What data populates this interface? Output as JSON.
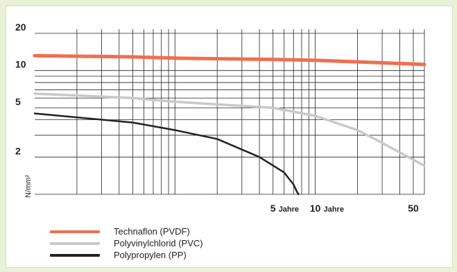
{
  "chart_data": {
    "type": "line",
    "title": "",
    "xlabel": "",
    "ylabel": "N/mm²",
    "x_scale": "log",
    "y_scale": "log",
    "xlim": [
      0.1,
      60
    ],
    "ylim": [
      1,
      20
    ],
    "y_ticks": [
      "20",
      "10",
      "5",
      "2"
    ],
    "x_ticks": [
      {
        "value": "5",
        "unit": "Jahre"
      },
      {
        "value": "10",
        "unit": "Jahre"
      },
      {
        "value": "50",
        "unit": ""
      }
    ],
    "grid": true,
    "legend_position": "bottom-left",
    "series": [
      {
        "name": "Technaflon (PVDF)",
        "color": "#ef6f4f",
        "x": [
          0.1,
          0.5,
          1,
          5,
          10,
          50,
          60
        ],
        "y": [
          13.2,
          12.9,
          12.6,
          12.3,
          12.1,
          11.3,
          11.2
        ]
      },
      {
        "name": "Polyvinylchlorid (PVC)",
        "color": "#c8c8c8",
        "x": [
          0.1,
          0.5,
          1,
          5,
          10,
          20,
          30,
          60
        ],
        "y": [
          6.5,
          6.0,
          5.6,
          5.0,
          4.3,
          3.3,
          2.6,
          1.7
        ]
      },
      {
        "name": "Polypropylen (PP)",
        "color": "#222222",
        "x": [
          0.1,
          0.5,
          1,
          2,
          4,
          6,
          7,
          7.4,
          7.6
        ],
        "y": [
          4.5,
          3.8,
          3.3,
          2.8,
          2.0,
          1.5,
          1.2,
          1.05,
          1.0
        ]
      }
    ]
  }
}
